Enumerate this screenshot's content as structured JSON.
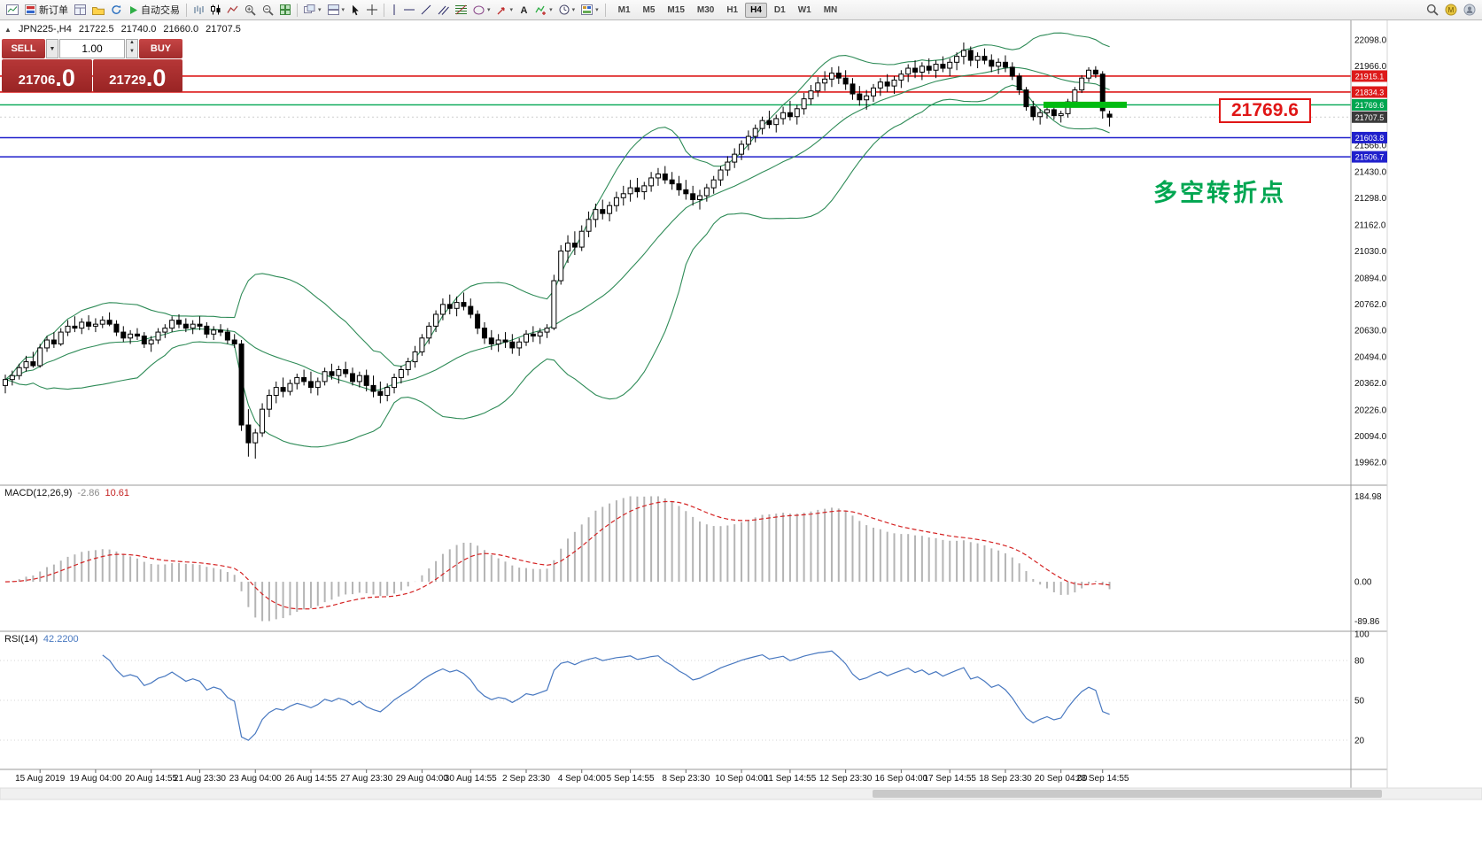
{
  "toolbar": {
    "left_items": [
      {
        "name": "new-chart",
        "icon": "chart"
      },
      {
        "name": "new-order",
        "icon": "order",
        "label": "新订单"
      },
      {
        "name": "chart-windows",
        "icon": "windows"
      },
      {
        "name": "profiles",
        "icon": "folder"
      },
      {
        "name": "refresh",
        "icon": "refresh"
      },
      {
        "name": "autotrading",
        "icon": "play",
        "label": "自动交易"
      },
      {
        "name": "sep1",
        "sep": true
      },
      {
        "name": "bar-chart-mode",
        "icon": "bars"
      },
      {
        "name": "candle-chart-mode",
        "icon": "candles"
      },
      {
        "name": "line-chart-mode",
        "icon": "linechart"
      },
      {
        "name": "zoom-in",
        "icon": "zoomin"
      },
      {
        "name": "zoom-out",
        "icon": "zoomout"
      },
      {
        "name": "tile-windows",
        "icon": "tile"
      },
      {
        "name": "sep2",
        "sep": true
      },
      {
        "name": "cascade-windows",
        "icon": "cascade",
        "dd": true
      },
      {
        "name": "arrange-windows",
        "icon": "arrange",
        "dd": true
      },
      {
        "name": "cursor",
        "icon": "cursor"
      },
      {
        "name": "crosshair",
        "icon": "crosshair"
      },
      {
        "name": "sep3",
        "sep": true
      },
      {
        "name": "vertical-line",
        "icon": "vline"
      },
      {
        "name": "horizontal-line",
        "icon": "hline"
      },
      {
        "name": "trendline",
        "icon": "trend"
      },
      {
        "name": "equidistant-channel",
        "icon": "channel"
      },
      {
        "name": "fibonacci-retracement",
        "icon": "fibo"
      },
      {
        "name": "shapes",
        "icon": "shapes",
        "dd": true
      },
      {
        "name": "arrows",
        "icon": "arrowobj",
        "dd": true
      },
      {
        "name": "text-label",
        "icon": "text"
      },
      {
        "name": "indicators",
        "icon": "indicators",
        "dd": true
      },
      {
        "name": "periods",
        "icon": "clock",
        "dd": true
      },
      {
        "name": "templates",
        "icon": "template",
        "dd": true
      },
      {
        "name": "sep4",
        "sep": true
      }
    ],
    "timeframes": [
      "M1",
      "M5",
      "M15",
      "M30",
      "H1",
      "H4",
      "D1",
      "W1",
      "MN"
    ],
    "active_timeframe": "H4",
    "right_items": [
      {
        "name": "search",
        "icon": "search"
      },
      {
        "name": "community",
        "icon": "circle1"
      },
      {
        "name": "account",
        "icon": "circle2"
      }
    ]
  },
  "chart": {
    "symbol_info": "JPN225-,H4",
    "ohlc": {
      "open": "21722.5",
      "high": "21740.0",
      "low": "21660.0",
      "close": "21707.5"
    },
    "y_ticks": [
      "22098.0",
      "21966.0",
      "21834.0",
      "21702.0",
      "21566.0",
      "21430.0",
      "21298.0",
      "21162.0",
      "21030.0",
      "20894.0",
      "20762.0",
      "20630.0",
      "20494.0",
      "20362.0",
      "20226.0",
      "20094.0",
      "19962.0"
    ],
    "levels": [
      {
        "value": 21915.1,
        "label": "21915.1",
        "color": "#dd1a1a",
        "width": 1.6
      },
      {
        "value": 21834.3,
        "label": "21834.3",
        "color": "#dd1a1a",
        "width": 1.6
      },
      {
        "value": 21769.6,
        "label": "21769.6",
        "color": "#00a651",
        "width": 1.3
      },
      {
        "value": 21603.8,
        "label": "21603.8",
        "color": "#2020cc",
        "width": 1.5
      },
      {
        "value": 21506.7,
        "label": "21506.7",
        "color": "#2020cc",
        "width": 1.5
      }
    ],
    "current_price": {
      "value": 21707.5,
      "label": "21707.5",
      "tag_color": "#3b3b3b"
    },
    "highlight_segment": {
      "price": 21769.6,
      "color": "#00bb11"
    },
    "annotations": {
      "price_callout": "21769.6",
      "turning_point": "多空转折点"
    },
    "bollinger_color": "#2e8b57"
  },
  "trade": {
    "sell_label": "SELL",
    "buy_label": "BUY",
    "volume": "1.00",
    "sell_price": "21706",
    "sell_price_frac": ".0",
    "buy_price": "21729",
    "buy_price_frac": ".0"
  },
  "macd": {
    "name": "MACD(12,26,9)",
    "value_main": "-2.86",
    "value_signal": "10.61",
    "ticks": [
      "184.98",
      "0.00",
      "-89.86"
    ]
  },
  "rsi": {
    "name": "RSI(14)",
    "value": "42.2200",
    "ticks": [
      "100",
      "80",
      "50",
      "20"
    ],
    "tick_values": [
      100,
      80,
      50,
      20
    ],
    "levels": [
      80,
      50,
      20
    ]
  },
  "time_axis": [
    {
      "label": "15 Aug 2019",
      "bar": 5
    },
    {
      "label": "19 Aug 04:00",
      "bar": 13
    },
    {
      "label": "20 Aug 14:55",
      "bar": 21
    },
    {
      "label": "21 Aug 23:30",
      "bar": 28
    },
    {
      "label": "23 Aug 04:00",
      "bar": 36
    },
    {
      "label": "26 Aug 14:55",
      "bar": 44
    },
    {
      "label": "27 Aug 23:30",
      "bar": 52
    },
    {
      "label": "29 Aug 04:00",
      "bar": 60
    },
    {
      "label": "30 Aug 14:55",
      "bar": 67
    },
    {
      "label": "2 Sep 23:30",
      "bar": 75
    },
    {
      "label": "4 Sep 04:00",
      "bar": 83
    },
    {
      "label": "5 Sep 14:55",
      "bar": 90
    },
    {
      "label": "8 Sep 23:30",
      "bar": 98
    },
    {
      "label": "10 Sep 04:00",
      "bar": 106
    },
    {
      "label": "11 Sep 14:55",
      "bar": 113
    },
    {
      "label": "12 Sep 23:30",
      "bar": 121
    },
    {
      "label": "16 Sep 04:00",
      "bar": 129
    },
    {
      "label": "17 Sep 14:55",
      "bar": 136
    },
    {
      "label": "18 Sep 23:30",
      "bar": 144
    },
    {
      "label": "20 Sep 04:00",
      "bar": 152
    },
    {
      "label": "23 Sep 14:55",
      "bar": 158
    }
  ],
  "chart_data": {
    "type": "candlestick",
    "symbol": "JPN225-",
    "timeframe": "H4",
    "price_axis_visible_range": [
      19962.0,
      22098.0
    ],
    "indicators": {
      "bollinger": {
        "period": 20,
        "deviation": 2
      },
      "macd": {
        "fast": 12,
        "slow": 26,
        "signal": 9,
        "current_main": -2.86,
        "current_signal": 10.61,
        "axis_max": 184.98,
        "axis_min": -89.86
      },
      "rsi": {
        "period": 14,
        "current": 42.22
      }
    },
    "horizontal_levels": [
      21915.1,
      21834.3,
      21769.6,
      21603.8,
      21506.7
    ],
    "candles": [
      [
        20350,
        20405,
        20310,
        20380
      ],
      [
        20380,
        20425,
        20350,
        20400
      ],
      [
        20400,
        20460,
        20380,
        20440
      ],
      [
        20440,
        20500,
        20420,
        20470
      ],
      [
        20470,
        20520,
        20440,
        20450
      ],
      [
        20450,
        20560,
        20440,
        20540
      ],
      [
        20540,
        20600,
        20520,
        20580
      ],
      [
        20580,
        20620,
        20540,
        20560
      ],
      [
        20560,
        20640,
        20550,
        20620
      ],
      [
        20620,
        20680,
        20600,
        20650
      ],
      [
        20650,
        20700,
        20620,
        20640
      ],
      [
        20640,
        20690,
        20610,
        20670
      ],
      [
        20670,
        20705,
        20630,
        20650
      ],
      [
        20650,
        20690,
        20620,
        20660
      ],
      [
        20660,
        20700,
        20640,
        20680
      ],
      [
        20680,
        20720,
        20650,
        20660
      ],
      [
        20660,
        20680,
        20600,
        20620
      ],
      [
        20620,
        20650,
        20570,
        20590
      ],
      [
        20590,
        20630,
        20560,
        20610
      ],
      [
        20610,
        20640,
        20580,
        20600
      ],
      [
        20600,
        20620,
        20540,
        20560
      ],
      [
        20560,
        20600,
        20520,
        20580
      ],
      [
        20580,
        20640,
        20560,
        20620
      ],
      [
        20620,
        20660,
        20590,
        20640
      ],
      [
        20640,
        20700,
        20620,
        20680
      ],
      [
        20680,
        20710,
        20640,
        20660
      ],
      [
        20660,
        20690,
        20620,
        20640
      ],
      [
        20640,
        20680,
        20610,
        20660
      ],
      [
        20660,
        20700,
        20630,
        20650
      ],
      [
        20650,
        20670,
        20590,
        20610
      ],
      [
        20610,
        20650,
        20580,
        20630
      ],
      [
        20630,
        20660,
        20600,
        20620
      ],
      [
        20620,
        20640,
        20560,
        20580
      ],
      [
        20580,
        20610,
        20540,
        20560
      ],
      [
        20560,
        20580,
        20120,
        20150
      ],
      [
        20150,
        20230,
        19990,
        20060
      ],
      [
        20060,
        20130,
        19980,
        20110
      ],
      [
        20110,
        20260,
        20090,
        20230
      ],
      [
        20230,
        20330,
        20190,
        20300
      ],
      [
        20300,
        20370,
        20260,
        20340
      ],
      [
        20340,
        20390,
        20290,
        20320
      ],
      [
        20320,
        20380,
        20300,
        20360
      ],
      [
        20360,
        20410,
        20330,
        20390
      ],
      [
        20390,
        20430,
        20350,
        20370
      ],
      [
        20370,
        20420,
        20310,
        20340
      ],
      [
        20340,
        20390,
        20300,
        20370
      ],
      [
        20370,
        20440,
        20350,
        20420
      ],
      [
        20420,
        20460,
        20380,
        20400
      ],
      [
        20400,
        20450,
        20360,
        20430
      ],
      [
        20430,
        20470,
        20390,
        20410
      ],
      [
        20410,
        20440,
        20350,
        20370
      ],
      [
        20370,
        20420,
        20340,
        20400
      ],
      [
        20400,
        20430,
        20320,
        20350
      ],
      [
        20350,
        20400,
        20290,
        20320
      ],
      [
        20320,
        20370,
        20260,
        20300
      ],
      [
        20300,
        20360,
        20270,
        20340
      ],
      [
        20340,
        20410,
        20310,
        20390
      ],
      [
        20390,
        20450,
        20360,
        20430
      ],
      [
        20430,
        20490,
        20400,
        20470
      ],
      [
        20470,
        20550,
        20440,
        20520
      ],
      [
        20520,
        20610,
        20500,
        20590
      ],
      [
        20590,
        20670,
        20560,
        20650
      ],
      [
        20650,
        20730,
        20620,
        20710
      ],
      [
        20710,
        20790,
        20680,
        20760
      ],
      [
        20760,
        20810,
        20710,
        20740
      ],
      [
        20740,
        20800,
        20700,
        20770
      ],
      [
        20770,
        20820,
        20730,
        20750
      ],
      [
        20750,
        20790,
        20690,
        20710
      ],
      [
        20710,
        20730,
        20610,
        20640
      ],
      [
        20640,
        20670,
        20560,
        20590
      ],
      [
        20590,
        20630,
        20530,
        20560
      ],
      [
        20560,
        20610,
        20520,
        20580
      ],
      [
        20580,
        20620,
        20540,
        20570
      ],
      [
        20570,
        20610,
        20510,
        20540
      ],
      [
        20540,
        20590,
        20500,
        20570
      ],
      [
        20570,
        20630,
        20550,
        20610
      ],
      [
        20610,
        20650,
        20570,
        20600
      ],
      [
        20600,
        20640,
        20560,
        20620
      ],
      [
        20620,
        20660,
        20590,
        20640
      ],
      [
        20640,
        20910,
        20630,
        20880
      ],
      [
        20880,
        21060,
        20860,
        21030
      ],
      [
        21030,
        21110,
        20970,
        21070
      ],
      [
        21070,
        21130,
        21010,
        21050
      ],
      [
        21050,
        21160,
        21030,
        21130
      ],
      [
        21130,
        21230,
        21100,
        21190
      ],
      [
        21190,
        21270,
        21150,
        21240
      ],
      [
        21240,
        21290,
        21190,
        21220
      ],
      [
        21220,
        21280,
        21180,
        21260
      ],
      [
        21260,
        21330,
        21230,
        21300
      ],
      [
        21300,
        21360,
        21260,
        21320
      ],
      [
        21320,
        21390,
        21280,
        21350
      ],
      [
        21350,
        21400,
        21300,
        21330
      ],
      [
        21330,
        21380,
        21290,
        21360
      ],
      [
        21360,
        21430,
        21330,
        21400
      ],
      [
        21400,
        21450,
        21360,
        21420
      ],
      [
        21420,
        21460,
        21370,
        21390
      ],
      [
        21390,
        21430,
        21340,
        21370
      ],
      [
        21370,
        21410,
        21310,
        21340
      ],
      [
        21340,
        21390,
        21290,
        21320
      ],
      [
        21320,
        21360,
        21260,
        21290
      ],
      [
        21290,
        21340,
        21240,
        21310
      ],
      [
        21310,
        21370,
        21280,
        21350
      ],
      [
        21350,
        21410,
        21320,
        21390
      ],
      [
        21390,
        21460,
        21360,
        21440
      ],
      [
        21440,
        21510,
        21410,
        21480
      ],
      [
        21480,
        21550,
        21450,
        21520
      ],
      [
        21520,
        21590,
        21490,
        21570
      ],
      [
        21570,
        21640,
        21540,
        21610
      ],
      [
        21610,
        21670,
        21580,
        21650
      ],
      [
        21650,
        21710,
        21620,
        21690
      ],
      [
        21690,
        21740,
        21650,
        21670
      ],
      [
        21670,
        21720,
        21630,
        21700
      ],
      [
        21700,
        21760,
        21670,
        21730
      ],
      [
        21730,
        21790,
        21690,
        21710
      ],
      [
        21710,
        21770,
        21670,
        21750
      ],
      [
        21750,
        21830,
        21720,
        21800
      ],
      [
        21800,
        21870,
        21770,
        21840
      ],
      [
        21840,
        21910,
        21810,
        21880
      ],
      [
        21880,
        21940,
        21840,
        21900
      ],
      [
        21900,
        21960,
        21860,
        21930
      ],
      [
        21930,
        21965,
        21875,
        21905
      ],
      [
        21905,
        21945,
        21845,
        21875
      ],
      [
        21875,
        21905,
        21795,
        21825
      ],
      [
        21825,
        21865,
        21765,
        21795
      ],
      [
        21795,
        21845,
        21745,
        21815
      ],
      [
        21815,
        21875,
        21785,
        21855
      ],
      [
        21855,
        21905,
        21815,
        21885
      ],
      [
        21885,
        21925,
        21835,
        21865
      ],
      [
        21865,
        21915,
        21825,
        21895
      ],
      [
        21895,
        21945,
        21855,
        21925
      ],
      [
        21925,
        21975,
        21885,
        21955
      ],
      [
        21955,
        21995,
        21905,
        21935
      ],
      [
        21935,
        21985,
        21895,
        21965
      ],
      [
        21965,
        22005,
        21925,
        21945
      ],
      [
        21945,
        21995,
        21905,
        21975
      ],
      [
        21975,
        22015,
        21935,
        21955
      ],
      [
        21955,
        22005,
        21915,
        21985
      ],
      [
        21985,
        22035,
        21945,
        22015
      ],
      [
        22015,
        22085,
        21975,
        22045
      ],
      [
        22045,
        22065,
        21965,
        21995
      ],
      [
        21995,
        22035,
        21955,
        22015
      ],
      [
        22015,
        22055,
        21975,
        21995
      ],
      [
        21995,
        22025,
        21935,
        21965
      ],
      [
        21965,
        22005,
        21925,
        21985
      ],
      [
        21985,
        22020,
        21935,
        21960
      ],
      [
        21960,
        21985,
        21895,
        21915
      ],
      [
        21915,
        21930,
        21820,
        21845
      ],
      [
        21845,
        21860,
        21740,
        21760
      ],
      [
        21760,
        21790,
        21690,
        21710
      ],
      [
        21710,
        21750,
        21670,
        21730
      ],
      [
        21730,
        21770,
        21700,
        21745
      ],
      [
        21745,
        21775,
        21695,
        21715
      ],
      [
        21715,
        21740,
        21680,
        21725
      ],
      [
        21725,
        21800,
        21705,
        21785
      ],
      [
        21785,
        21860,
        21770,
        21845
      ],
      [
        21845,
        21920,
        21830,
        21905
      ],
      [
        21905,
        21960,
        21885,
        21945
      ],
      [
        21945,
        21965,
        21905,
        21925
      ],
      [
        21925,
        21940,
        21700,
        21740
      ],
      [
        21722.5,
        21740,
        21660,
        21707.5
      ]
    ]
  }
}
